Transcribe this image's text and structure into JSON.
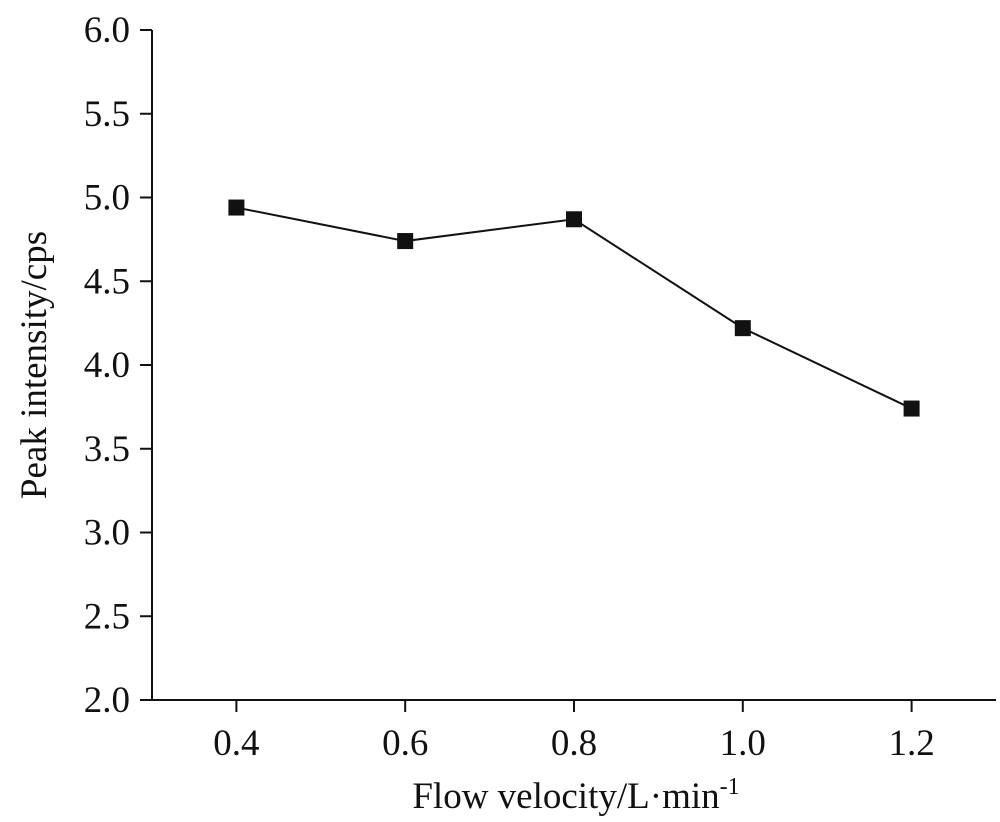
{
  "chart_data": {
    "type": "line",
    "title": "",
    "xlabel": "Flow velocity/L·min",
    "xlabel_superscript": "-1",
    "ylabel": "Peak intensity/cps",
    "x": [
      0.4,
      0.6,
      0.8,
      1.0,
      1.2
    ],
    "x_tick_labels": [
      "0.4",
      "0.6",
      "0.8",
      "1.0",
      "1.2"
    ],
    "xlim": [
      0.3,
      1.3
    ],
    "ylim": [
      2.0,
      6.0
    ],
    "y_ticks": [
      2.0,
      2.5,
      3.0,
      3.5,
      4.0,
      4.5,
      5.0,
      5.5,
      6.0
    ],
    "y_tick_labels": [
      "2.0",
      "2.5",
      "3.0",
      "3.5",
      "4.0",
      "4.5",
      "5.0",
      "5.5",
      "6.0"
    ],
    "series": [
      {
        "name": "Peak intensity",
        "marker": "square",
        "color": "#111111",
        "values": [
          4.94,
          4.74,
          4.87,
          4.22,
          3.74
        ]
      }
    ],
    "grid": false,
    "legend": "none"
  }
}
